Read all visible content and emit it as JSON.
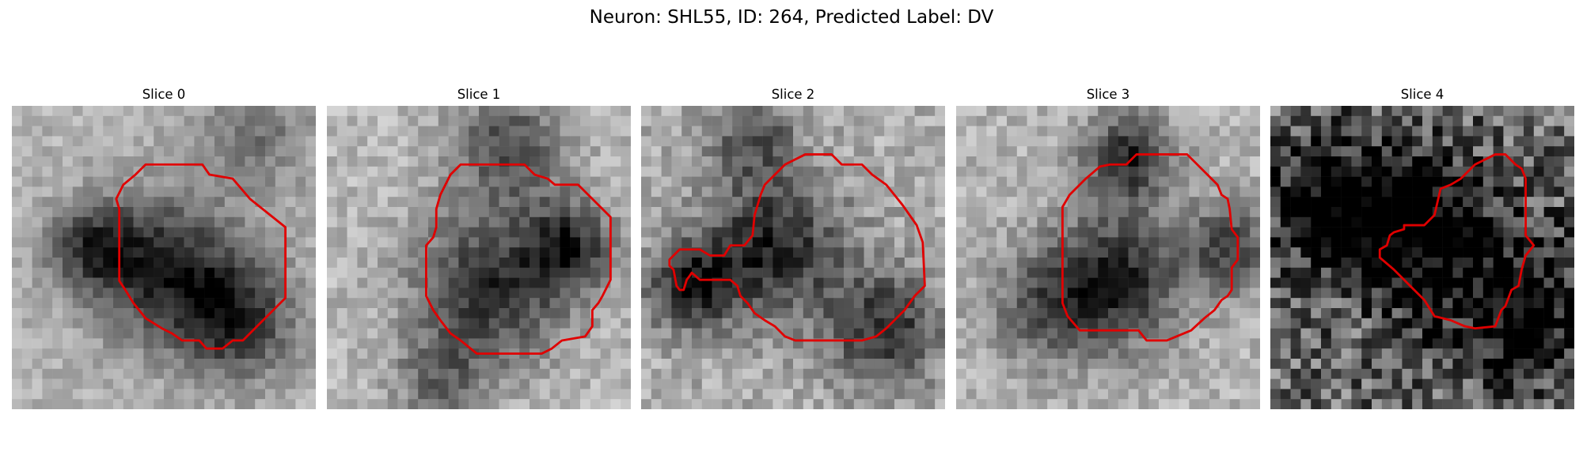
{
  "figure": {
    "title": "Neuron: SHL55, ID: 264, Predicted Label: DV"
  },
  "colors": {
    "contour": "#e00000",
    "background": "#ffffff"
  },
  "slices": [
    {
      "title": "Slice 0"
    },
    {
      "title": "Slice 1"
    },
    {
      "title": "Slice 2"
    },
    {
      "title": "Slice 3"
    },
    {
      "title": "Slice 4"
    }
  ]
}
